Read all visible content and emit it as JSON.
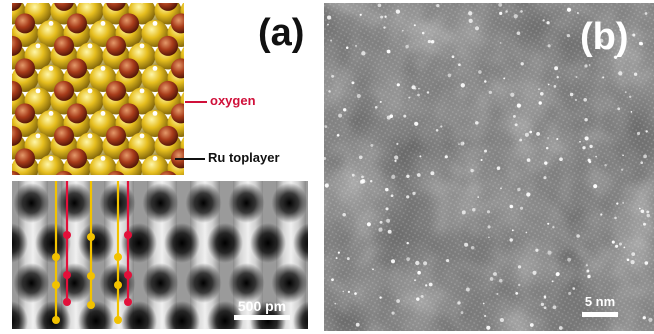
{
  "panels": {
    "a": {
      "label": "(a)"
    },
    "b": {
      "label": "(b)"
    }
  },
  "legend": {
    "oxygen": "oxygen",
    "ru_toplayer": "Ru toplayer"
  },
  "scale_bars": {
    "a": "500 pm",
    "b": "5 nm"
  },
  "colors": {
    "oxygen": "#d0103a",
    "ru": "#e8c21a",
    "marker_red": "#e2103a",
    "marker_yellow": "#f2c200"
  }
}
